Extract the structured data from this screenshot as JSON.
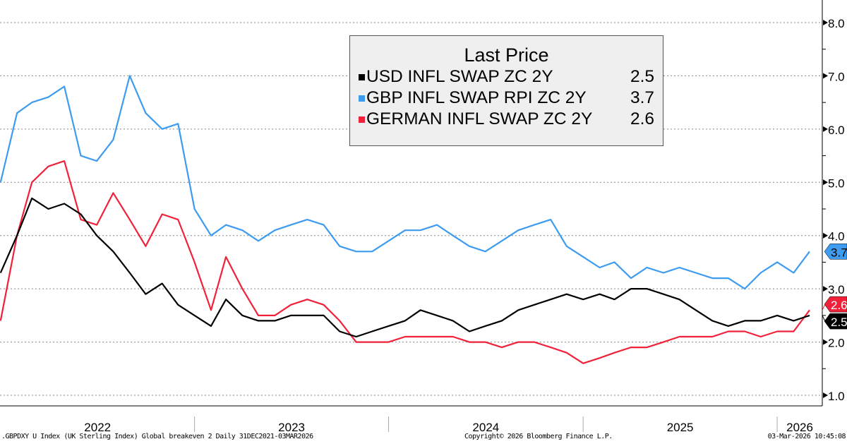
{
  "chart_data": {
    "type": "line",
    "legend": {
      "title": "Last Price",
      "placement": "top-center",
      "entries": [
        {
          "name": "USD INFL SWAP ZC 2Y",
          "value": "2.5",
          "color": "#000000"
        },
        {
          "name": "GBP INFL SWAP RPI ZC 2Y",
          "value": "3.7",
          "color": "#3d9bf0"
        },
        {
          "name": "GERMAN INFL SWAP ZC 2Y",
          "value": "2.6",
          "color": "#f2213a"
        }
      ]
    },
    "x": [
      "2022-01-01",
      "2022-02-01",
      "2022-03-01",
      "2022-04-01",
      "2022-05-01",
      "2022-06-01",
      "2022-07-01",
      "2022-08-01",
      "2022-09-01",
      "2022-10-01",
      "2022-11-01",
      "2022-12-01",
      "2023-01-01",
      "2023-02-01",
      "2023-03-01",
      "2023-04-01",
      "2023-05-01",
      "2023-06-01",
      "2023-07-01",
      "2023-08-01",
      "2023-09-01",
      "2023-10-01",
      "2023-11-01",
      "2023-12-01",
      "2024-01-01",
      "2024-02-01",
      "2024-03-01",
      "2024-04-01",
      "2024-05-01",
      "2024-06-01",
      "2024-07-01",
      "2024-08-01",
      "2024-09-01",
      "2024-10-01",
      "2024-11-01",
      "2024-12-01",
      "2025-01-01",
      "2025-02-01",
      "2025-03-01",
      "2025-04-01",
      "2025-05-01",
      "2025-06-01",
      "2025-07-01",
      "2025-08-01",
      "2025-09-01",
      "2025-10-01",
      "2025-11-01",
      "2025-12-01",
      "2026-01-01",
      "2026-02-01",
      "2026-03-03"
    ],
    "series": [
      {
        "name": "GBP INFL SWAP RPI ZC 2Y",
        "color": "#3d9bf0",
        "values": [
          5.0,
          6.3,
          6.5,
          6.6,
          6.8,
          5.5,
          5.4,
          5.8,
          7.0,
          6.3,
          6.0,
          6.1,
          4.5,
          4.0,
          4.2,
          4.1,
          3.9,
          4.1,
          4.2,
          4.3,
          4.2,
          3.8,
          3.7,
          3.7,
          3.9,
          4.1,
          4.1,
          4.2,
          4.0,
          3.8,
          3.7,
          3.9,
          4.1,
          4.2,
          4.3,
          3.8,
          3.6,
          3.4,
          3.5,
          3.2,
          3.4,
          3.3,
          3.4,
          3.3,
          3.2,
          3.2,
          3.0,
          3.3,
          3.5,
          3.3,
          3.7
        ]
      },
      {
        "name": "GERMAN INFL SWAP ZC 2Y",
        "color": "#f2213a",
        "values": [
          2.4,
          4.0,
          5.0,
          5.3,
          5.4,
          4.3,
          4.2,
          4.8,
          4.3,
          3.8,
          4.4,
          4.3,
          3.5,
          2.6,
          3.6,
          3.0,
          2.5,
          2.5,
          2.7,
          2.8,
          2.7,
          2.4,
          2.0,
          2.0,
          2.0,
          2.1,
          2.1,
          2.1,
          2.1,
          2.0,
          2.0,
          1.9,
          2.0,
          2.0,
          1.9,
          1.8,
          1.6,
          1.7,
          1.8,
          1.9,
          1.9,
          2.0,
          2.1,
          2.1,
          2.1,
          2.2,
          2.2,
          2.1,
          2.2,
          2.2,
          2.6
        ]
      },
      {
        "name": "USD INFL SWAP ZC 2Y",
        "color": "#000000",
        "values": [
          3.3,
          4.0,
          4.7,
          4.5,
          4.6,
          4.4,
          4.0,
          3.7,
          3.3,
          2.9,
          3.1,
          2.7,
          2.5,
          2.3,
          2.8,
          2.5,
          2.4,
          2.4,
          2.5,
          2.5,
          2.5,
          2.2,
          2.1,
          2.2,
          2.3,
          2.4,
          2.6,
          2.5,
          2.4,
          2.2,
          2.3,
          2.4,
          2.6,
          2.7,
          2.8,
          2.9,
          2.8,
          2.9,
          2.8,
          3.0,
          3.0,
          2.9,
          2.8,
          2.6,
          2.4,
          2.3,
          2.4,
          2.4,
          2.5,
          2.4,
          2.5
        ]
      }
    ],
    "y_axis": {
      "position": "right",
      "ylim": [
        0.9,
        8.35
      ],
      "ticks": [
        "1.0",
        "2.0",
        "3.0",
        "4.0",
        "5.0",
        "6.0",
        "7.0",
        "8.0"
      ]
    },
    "x_axis": {
      "tick_labels": [
        "2022",
        "2023",
        "2024",
        "2025",
        "2026"
      ],
      "range": [
        "2021-12-31",
        "2026-03-03"
      ]
    },
    "grid": true,
    "last_value_tags": [
      {
        "label": "3.7",
        "value": 3.7,
        "color": "#3d9bf0"
      },
      {
        "label": "2.6",
        "value": 2.6,
        "color": "#f2213a"
      },
      {
        "label": "2.5",
        "value": 2.5,
        "color": "#000000"
      }
    ]
  },
  "footer": {
    "left": ".GBPDXY U Index (UK Sterling Index) Global breakeven 2 Daily 31DEC2021-03MAR2026",
    "center": "Copyright© 2026 Bloomberg Finance L.P.",
    "right": "03-Mar-2026 10:45:08"
  }
}
